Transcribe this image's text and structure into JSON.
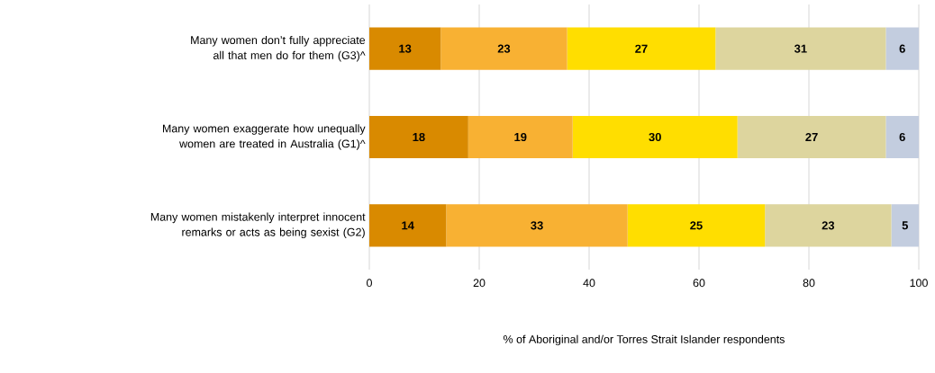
{
  "chart_data": {
    "type": "bar",
    "orientation": "horizontal",
    "stacked": true,
    "categories": [
      "Many women don’t fully appreciate all that men do for them (G3)^",
      "Many women exaggerate how unequally women are treated in Australia (G1)^",
      "Many women mistakenly interpret innocent remarks or acts as being sexist (G2)"
    ],
    "series": [
      {
        "color": "#d98a00",
        "values": [
          13,
          18,
          14
        ]
      },
      {
        "color": "#f8b133",
        "values": [
          23,
          19,
          33
        ]
      },
      {
        "color": "#ffde00",
        "values": [
          27,
          30,
          25
        ]
      },
      {
        "color": "#ddd59e",
        "values": [
          31,
          27,
          23
        ]
      },
      {
        "color": "#c3cddf",
        "values": [
          6,
          6,
          5
        ]
      }
    ],
    "xlim": [
      0,
      100
    ],
    "xticks": [
      0,
      20,
      40,
      60,
      80,
      100
    ],
    "xlabel": "% of Aboriginal and/or Torres Strait Islander respondents",
    "grid": "x",
    "data_labels": true
  }
}
